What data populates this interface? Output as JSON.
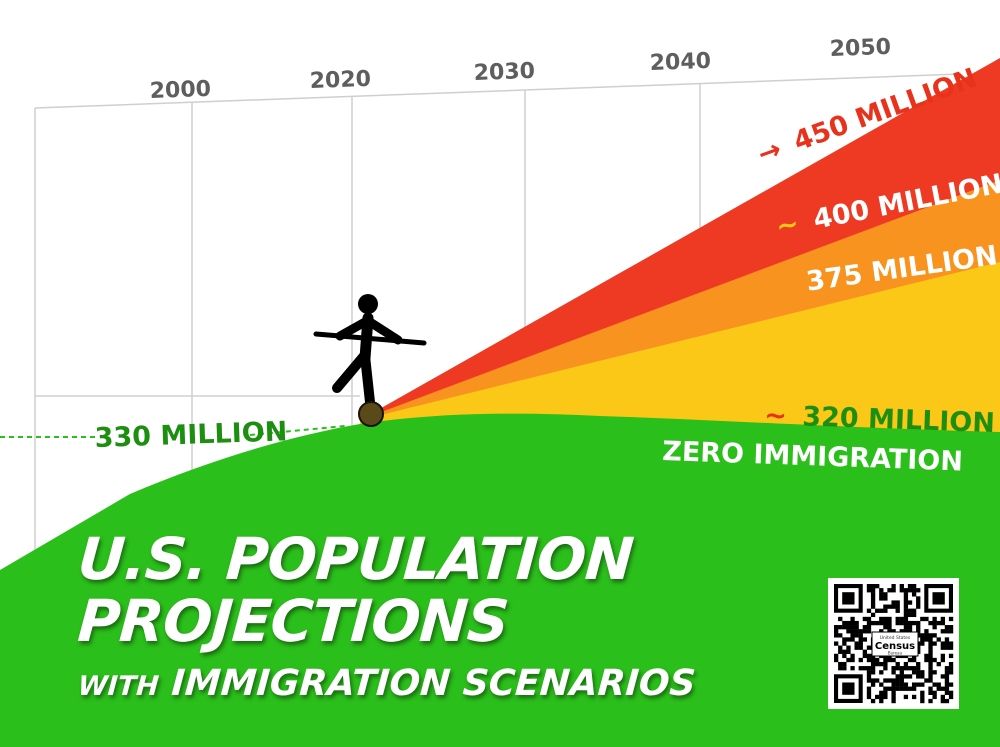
{
  "chart_data": {
    "type": "area",
    "title": "U.S. POPULATION PROJECTIONS",
    "subtitle_prefix": "WITH",
    "subtitle_main": "IMMIGRATION SCENARIOS",
    "x_ticks": [
      "2000",
      "2020",
      "2030",
      "2040",
      "2050"
    ],
    "current_population_label": "330 MILLION",
    "series": [
      {
        "label": "450 MILLION",
        "prefix": "→",
        "color": "#ee3a23",
        "value_millions": 450
      },
      {
        "label": "400 MILLION",
        "prefix": "~",
        "color": "#f7931e",
        "value_millions": 400
      },
      {
        "label": "375 MILLION",
        "prefix": "~",
        "color": "#fcc817",
        "value_millions": 375
      },
      {
        "label": "320 MILLION",
        "prefix": "~",
        "color": "#2bbf1b",
        "value_millions": 320,
        "note": "ZERO IMMIGRATION"
      }
    ],
    "grid": true
  },
  "qr_code": {
    "label_top": "United States",
    "label_main": "Census",
    "label_bottom": "Bureau"
  },
  "colors": {
    "green": "#2bbf1b",
    "yellow": "#fcc817",
    "orange": "#f7931e",
    "red": "#ee3a23",
    "label_red": "#e8321c",
    "label_green": "#1c8f11",
    "tilde_orange": "#f7931e"
  }
}
